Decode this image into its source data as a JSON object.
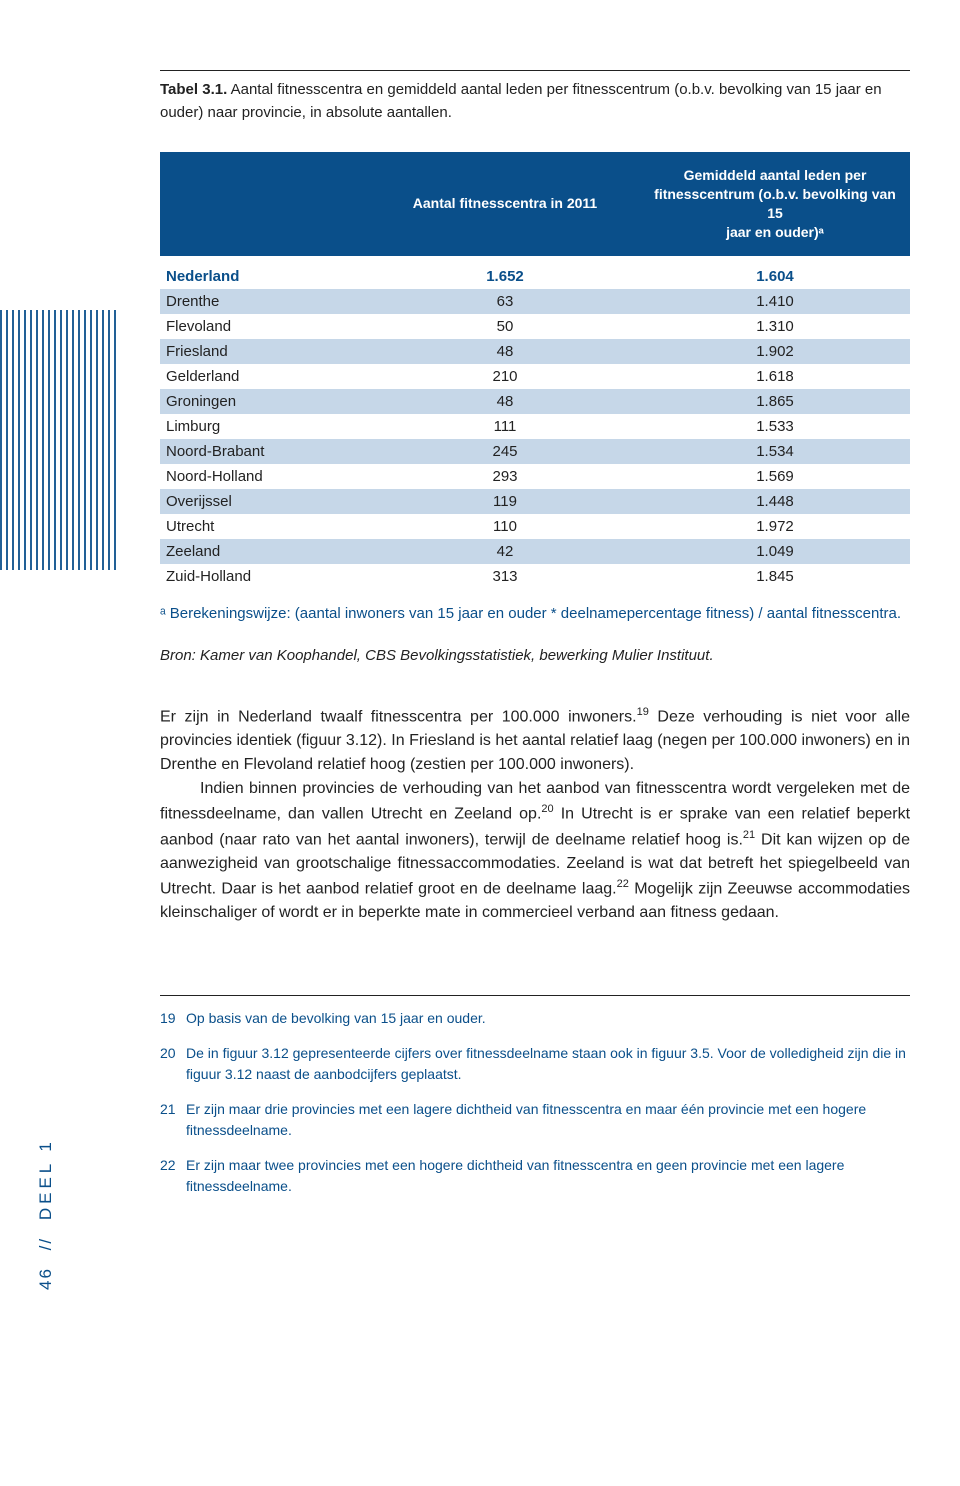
{
  "colors": {
    "brand": "#0a4f8a",
    "band": "#c6d7e8",
    "text": "#222222",
    "white": "#ffffff"
  },
  "caption": {
    "label": "Tabel 3.1.",
    "text": "Aantal fitnesscentra en gemiddeld aantal leden per fitnesscentrum (o.b.v. bevolking van 15 jaar en ouder) naar provincie, in absolute aantallen."
  },
  "table": {
    "type": "table",
    "header": {
      "col1": "Aantal fitnesscentra in 2011",
      "col2_l1": "Gemiddeld aantal leden per",
      "col2_l2": "fitnesscentrum (o.b.v. bevolking van 15",
      "col2_l3": "jaar en ouder)ᵃ"
    },
    "total": {
      "name": "Nederland",
      "c1": "1.652",
      "c2": "1.604"
    },
    "rows": [
      {
        "name": "Drenthe",
        "c1": "63",
        "c2": "1.410"
      },
      {
        "name": "Flevoland",
        "c1": "50",
        "c2": "1.310"
      },
      {
        "name": "Friesland",
        "c1": "48",
        "c2": "1.902"
      },
      {
        "name": "Gelderland",
        "c1": "210",
        "c2": "1.618"
      },
      {
        "name": "Groningen",
        "c1": "48",
        "c2": "1.865"
      },
      {
        "name": "Limburg",
        "c1": "111",
        "c2": "1.533"
      },
      {
        "name": "Noord-Brabant",
        "c1": "245",
        "c2": "1.534"
      },
      {
        "name": "Noord-Holland",
        "c1": "293",
        "c2": "1.569"
      },
      {
        "name": "Overijssel",
        "c1": "119",
        "c2": "1.448"
      },
      {
        "name": "Utrecht",
        "c1": "110",
        "c2": "1.972"
      },
      {
        "name": "Zeeland",
        "c1": "42",
        "c2": "1.049"
      },
      {
        "name": "Zuid-Holland",
        "c1": "313",
        "c2": "1.845"
      }
    ]
  },
  "footnote_a": "ᵃ Berekeningswijze: (aantal inwoners van 15 jaar en ouder * deelnamepercentage fitness) / aantal fitnesscentra.",
  "source": "Bron: Kamer van Koophandel, CBS Bevolkingsstatistiek, bewerking Mulier Instituut.",
  "body": {
    "p1a": "Er zijn in Nederland twaalf fitnesscentra per 100.000 inwoners.",
    "p1b": " Deze verhouding is niet voor alle provincies identiek (figuur 3.12). In Friesland is het aantal relatief laag (negen per 100.000 inwoners) en in Drenthe en Flevoland relatief hoog (zestien per 100.000 inwoners).",
    "p2a": "Indien binnen provincies de verhouding van het aanbod van fitnesscentra wordt vergeleken met de fitnessdeelname, dan vallen Utrecht en Zeeland op.",
    "p2b": " In Utrecht is er sprake van een relatief beperkt aanbod (naar rato van het aantal inwoners), terwijl de deelname relatief hoog is.",
    "p2c": " Dit kan wijzen op de aanwezigheid van grootschalige fitnessaccommodaties. Zeeland is wat dat betreft het spiegelbeeld van Utrecht. Daar is het aanbod relatief groot en de deelname laag.",
    "p2d": " Mogelijk zijn Zeeuwse accommodaties kleinschaliger of wordt er in beperkte mate in commercieel verband aan fitness gedaan.",
    "sup19": "19",
    "sup20": "20",
    "sup21": "21",
    "sup22": "22"
  },
  "footnotes": [
    {
      "n": "19",
      "t": "Op basis van de bevolking van 15 jaar en ouder."
    },
    {
      "n": "20",
      "t": "De in figuur 3.12 gepresenteerde cijfers over fitnessdeelname staan ook in figuur 3.5. Voor de volledigheid zijn die in figuur 3.12 naast de aanbodcijfers geplaatst."
    },
    {
      "n": "21",
      "t": "Er zijn maar drie provincies met een lagere dichtheid van fitnesscentra en maar één provincie met een hogere fitnessdeelname."
    },
    {
      "n": "22",
      "t": "Er zijn maar twee provincies met een hogere dichtheid van fitnesscentra en geen provincie met een lagere fitnessdeelname."
    }
  ],
  "side": {
    "page": "46",
    "sep": "//",
    "label": "DEEL 1"
  }
}
